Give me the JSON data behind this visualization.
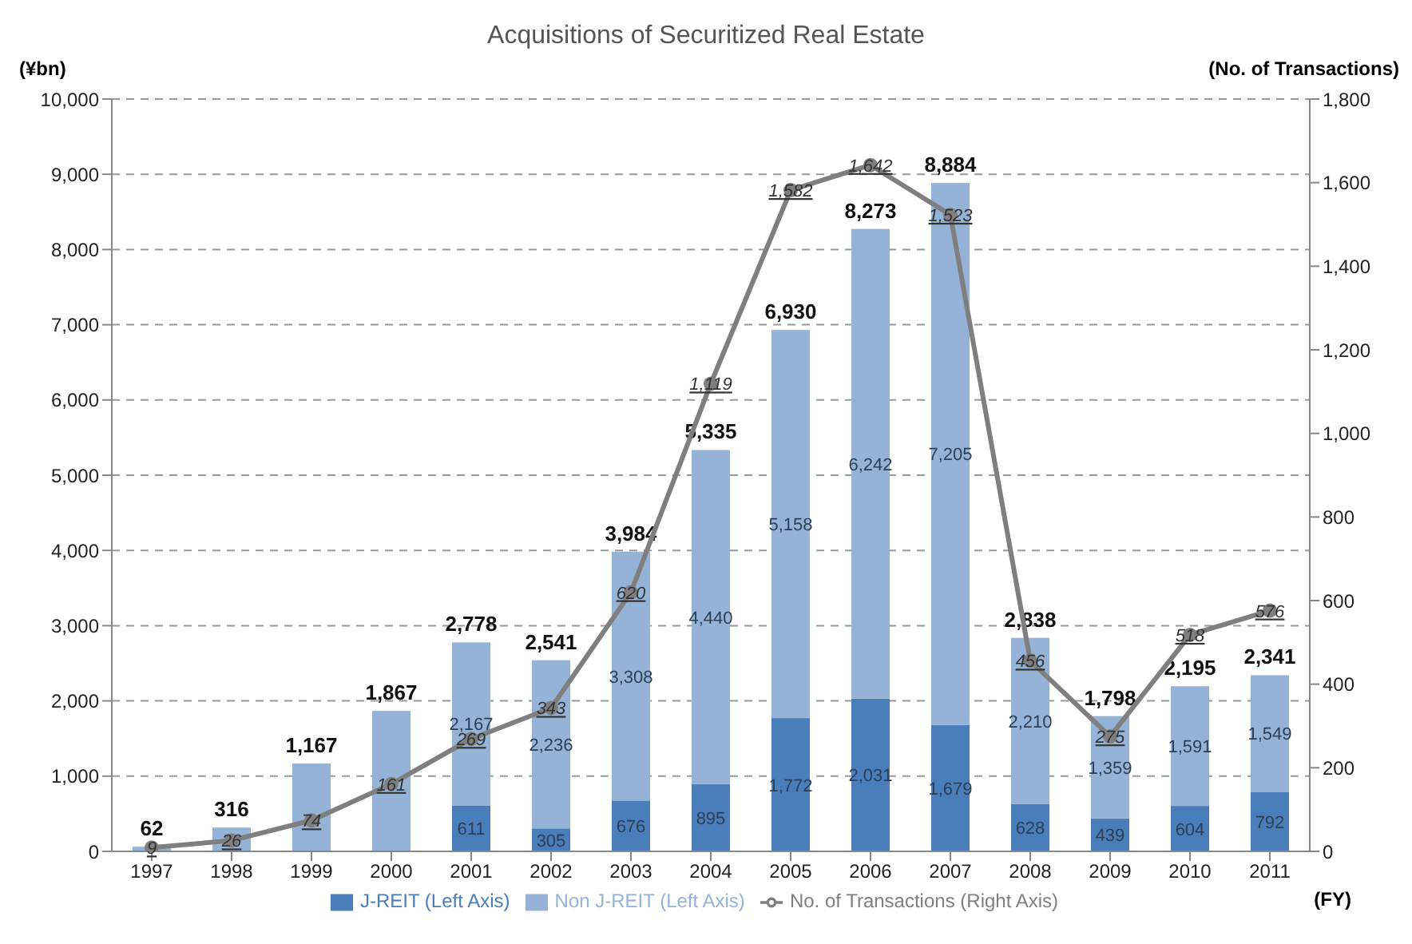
{
  "chart_data": {
    "type": "bar",
    "title": "Acquisitions of Securitized Real Estate",
    "xlabel": "(FY)",
    "ylabel": "(¥bn)",
    "y2label": "(No. of Transactions)",
    "categories": [
      "1997",
      "1998",
      "1999",
      "2000",
      "2001",
      "2002",
      "2003",
      "2004",
      "2005",
      "2006",
      "2007",
      "2008",
      "2009",
      "2010",
      "2011"
    ],
    "stacked": true,
    "ylim": [
      0,
      10000
    ],
    "yticks": [
      0,
      {
        "value": 1000,
        "label": "1,000"
      },
      {
        "value": 2000,
        "label": "2,000"
      },
      {
        "value": 3000,
        "label": "3,000"
      },
      {
        "value": 4000,
        "label": "4,000"
      },
      {
        "value": 5000,
        "label": "5,000"
      },
      {
        "value": 6000,
        "label": "6,000"
      },
      {
        "value": 7000,
        "label": "7,000"
      },
      {
        "value": 8000,
        "label": "8,000"
      },
      {
        "value": 9000,
        "label": "9,000"
      },
      {
        "value": 10000,
        "label": "10,000"
      }
    ],
    "y2lim": [
      0,
      1800
    ],
    "y2ticks": [
      0,
      200,
      400,
      600,
      800,
      {
        "value": 1000,
        "label": "1,000"
      },
      {
        "value": 1200,
        "label": "1,200"
      },
      {
        "value": 1400,
        "label": "1,400"
      },
      {
        "value": 1600,
        "label": "1,600"
      },
      {
        "value": 1800,
        "label": "1,800"
      }
    ],
    "grid": "y",
    "legend": "bottom",
    "series": [
      {
        "name": "J-REIT (Left Axis)",
        "color": "#4a7ebb",
        "values": [
          null,
          null,
          null,
          null,
          611,
          305,
          676,
          895,
          1772,
          2031,
          1679,
          628,
          439,
          604,
          792
        ],
        "value_labels": [
          null,
          null,
          null,
          null,
          "611",
          "305",
          "676",
          "895",
          "1,772",
          "2,031",
          "1,679",
          "628",
          "439",
          "604",
          "792"
        ]
      },
      {
        "name": "Non J-REIT (Left Axis)",
        "color": "#95b3d7",
        "values": [
          62,
          316,
          1167,
          1867,
          2167,
          2236,
          3308,
          4440,
          5158,
          6242,
          7205,
          2210,
          1359,
          1591,
          1549
        ],
        "value_labels": [
          null,
          null,
          null,
          null,
          "2,167",
          "2,236",
          "3,308",
          "4,440",
          "5,158",
          "6,242",
          "7,205",
          "2,210",
          "1,359",
          "1,591",
          "1,549"
        ]
      },
      {
        "name": "No. of Transactions (Right Axis)",
        "type": "line",
        "axis": "y2",
        "color": "#7f7f7f",
        "marker": "circle",
        "values": [
          9,
          26,
          74,
          161,
          269,
          343,
          620,
          1119,
          1582,
          1642,
          1523,
          456,
          275,
          518,
          576
        ],
        "value_labels": [
          "9",
          "26",
          "74",
          "161",
          "269",
          "343",
          "620",
          "1,119",
          "1,582",
          "1,642",
          "1,523",
          "456",
          "275",
          "518",
          "576"
        ]
      }
    ],
    "totals": [
      "62",
      "316",
      "1,167",
      "1,867",
      "2,778",
      "2,541",
      "3,984",
      "5,335",
      "6,930",
      "8,273",
      "8,884",
      "2,838",
      "1,798",
      "2,195",
      "2,341"
    ]
  }
}
